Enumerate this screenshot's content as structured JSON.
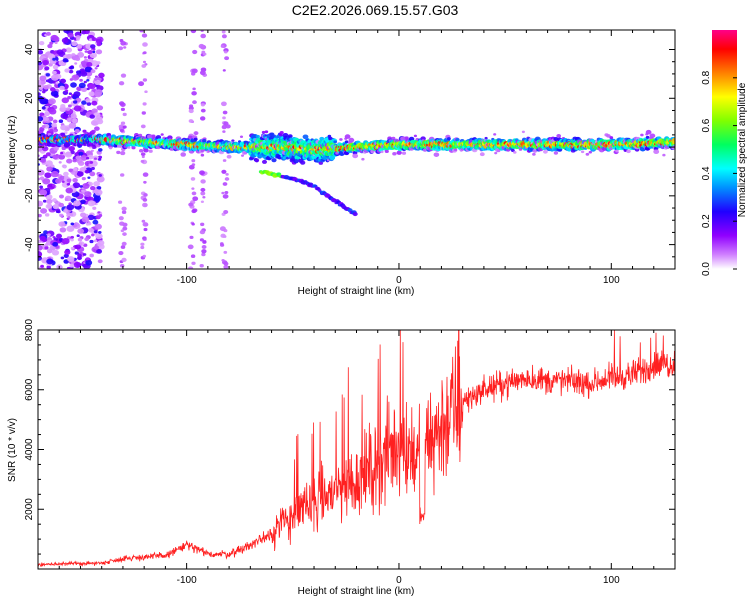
{
  "title": "C2E2.2026.069.15.57.G03",
  "chart_data": [
    {
      "type": "heatmap",
      "xlabel": "Height of straight line (km)",
      "ylabel": "Frequency (Hz)",
      "xlim": [
        -170,
        130
      ],
      "ylim": [
        -50,
        48
      ],
      "xticks": [
        -100,
        0,
        100
      ],
      "yticks": [
        -40,
        -20,
        0,
        20,
        40
      ],
      "colorbar": {
        "label": "Normalized spectral amplitude",
        "range": [
          0,
          1
        ],
        "ticks": [
          0.0,
          0.2,
          0.4,
          0.6,
          0.8
        ],
        "tick_labels": [
          "0.0",
          "0.2",
          "0.4",
          "0.6",
          "0.8"
        ],
        "colors": [
          "#ffffff",
          "#c040ff",
          "#4000ff",
          "#0080ff",
          "#00ffff",
          "#00ff40",
          "#80ff00",
          "#ffff00",
          "#ff8000",
          "#ff0000",
          "#ff0080"
        ]
      },
      "main_band": {
        "center_freq_hz": [
          [
            -170,
            3
          ],
          [
            -140,
            3
          ],
          [
            -120,
            2
          ],
          [
            -100,
            1
          ],
          [
            -80,
            0
          ],
          [
            -60,
            0
          ],
          [
            -40,
            -1
          ],
          [
            -20,
            0
          ],
          [
            0,
            1
          ],
          [
            20,
            1
          ],
          [
            60,
            1
          ],
          [
            100,
            1
          ],
          [
            130,
            2
          ]
        ],
        "half_width_hz": 3
      },
      "secondary_branch": {
        "freq_hz": [
          [
            -65,
            -10
          ],
          [
            -50,
            -13
          ],
          [
            -40,
            -16
          ],
          [
            -30,
            -22
          ],
          [
            -20,
            -28
          ]
        ]
      },
      "noise_region_x": [
        -170,
        -140
      ]
    },
    {
      "type": "line",
      "xlabel": "Height of straight line (km)",
      "ylabel": "SNR (10 * v/v)",
      "xlim": [
        -170,
        130
      ],
      "ylim": [
        0,
        8000
      ],
      "xticks": [
        -100,
        0,
        100
      ],
      "yticks": [
        2000,
        4000,
        6000,
        8000
      ],
      "color": "#ff2020",
      "trend": [
        [
          -170,
          150
        ],
        [
          -140,
          200
        ],
        [
          -130,
          350
        ],
        [
          -110,
          450
        ],
        [
          -100,
          800
        ],
        [
          -90,
          500
        ],
        [
          -80,
          500
        ],
        [
          -70,
          800
        ],
        [
          -60,
          1200
        ],
        [
          -50,
          1800
        ],
        [
          -40,
          2200
        ],
        [
          -30,
          2600
        ],
        [
          -20,
          3000
        ],
        [
          -10,
          3500
        ],
        [
          0,
          4200
        ],
        [
          10,
          3800
        ],
        [
          20,
          4800
        ],
        [
          30,
          5600
        ],
        [
          40,
          6000
        ],
        [
          50,
          6200
        ],
        [
          60,
          6400
        ],
        [
          70,
          6300
        ],
        [
          80,
          6300
        ],
        [
          90,
          6200
        ],
        [
          100,
          6400
        ],
        [
          110,
          6500
        ],
        [
          120,
          6800
        ],
        [
          130,
          6900
        ]
      ]
    }
  ]
}
